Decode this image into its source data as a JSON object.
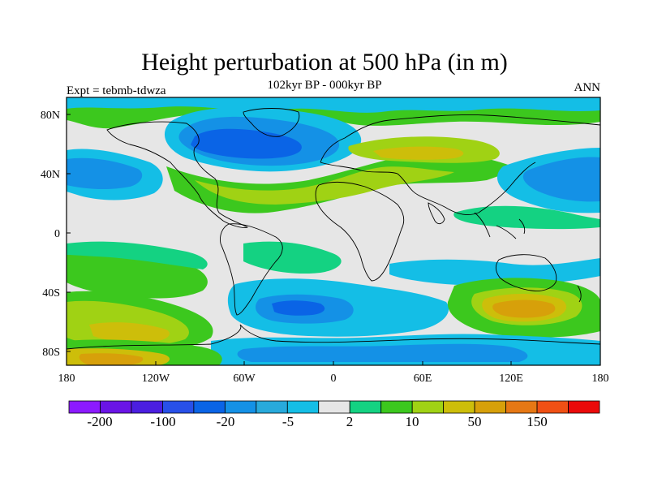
{
  "title": "Height perturbation at 500 hPa (in m)",
  "subtitle": "102kyr BP - 000kyr BP",
  "left_label": "Expt = tebmb-tdwza",
  "right_label": "ANN",
  "lat_ticks": [
    "80N",
    "40N",
    "0",
    "40S",
    "80S"
  ],
  "lon_ticks": [
    "180",
    "120W",
    "60W",
    "0",
    "60E",
    "120E",
    "180"
  ],
  "colorbar": {
    "colors": [
      "#8c1aff",
      "#6a14e6",
      "#4b1ee0",
      "#2850e8",
      "#0a64e6",
      "#1491e6",
      "#28aadc",
      "#14bee6",
      "#e6e6e6",
      "#14d282",
      "#3cc81e",
      "#a0d214",
      "#cdbe0a",
      "#d7a00a",
      "#e67814",
      "#f05014",
      "#eb0a0a"
    ],
    "labels": [
      "-200",
      "-100",
      "-20",
      "-5",
      "2",
      "10",
      "50",
      "150"
    ]
  }
}
